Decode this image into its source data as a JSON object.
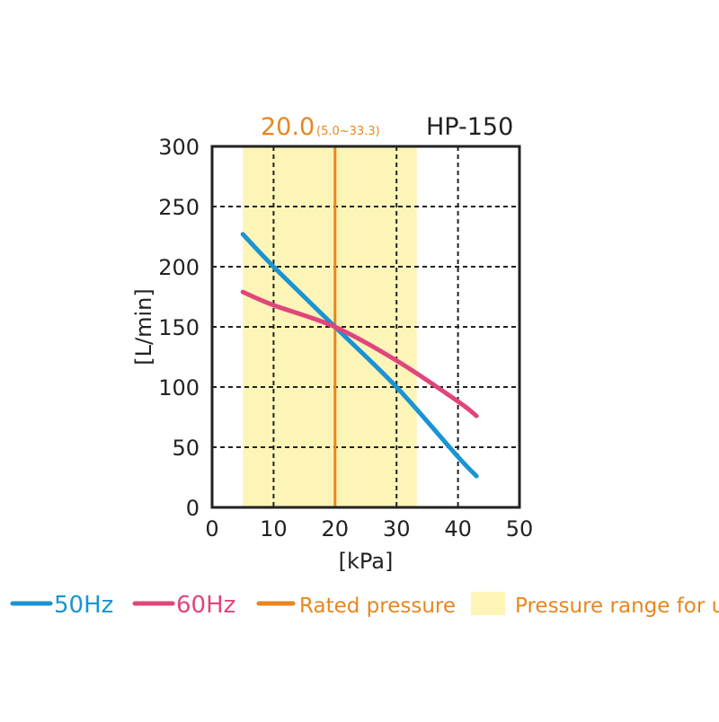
{
  "chart_data": {
    "type": "line",
    "title": "HP-150",
    "rated_label": "20.0",
    "range_label": "(5.0~33.3)",
    "xlabel": "[kPa]",
    "ylabel": "[L/min]",
    "xlim": [
      0,
      50
    ],
    "ylim": [
      0,
      300
    ],
    "xticks": [
      0,
      10,
      20,
      30,
      40,
      50
    ],
    "yticks": [
      0,
      50,
      100,
      150,
      200,
      250,
      300
    ],
    "grid": true,
    "rated_pressure": 20.0,
    "pressure_range": [
      5.0,
      33.3
    ],
    "series": [
      {
        "name": "50Hz",
        "color": "#1a94d2",
        "x": [
          5,
          10,
          20,
          30,
          40,
          43
        ],
        "y": [
          227,
          200,
          150,
          100,
          42,
          26
        ]
      },
      {
        "name": "60Hz",
        "color": "#e0457b",
        "x": [
          5,
          10,
          20,
          30,
          40,
          43
        ],
        "y": [
          179,
          168,
          150,
          122,
          88,
          76
        ]
      }
    ],
    "legend": [
      {
        "label": "50Hz",
        "color": "#1a94d2",
        "kind": "line"
      },
      {
        "label": "60Hz",
        "color": "#e0457b",
        "kind": "line"
      },
      {
        "label": "Rated pressure",
        "color": "#e8861e",
        "kind": "line"
      },
      {
        "label": "Pressure range for use",
        "color": "#fdf4b8",
        "kind": "box"
      }
    ],
    "legend_placement": "bottom"
  }
}
